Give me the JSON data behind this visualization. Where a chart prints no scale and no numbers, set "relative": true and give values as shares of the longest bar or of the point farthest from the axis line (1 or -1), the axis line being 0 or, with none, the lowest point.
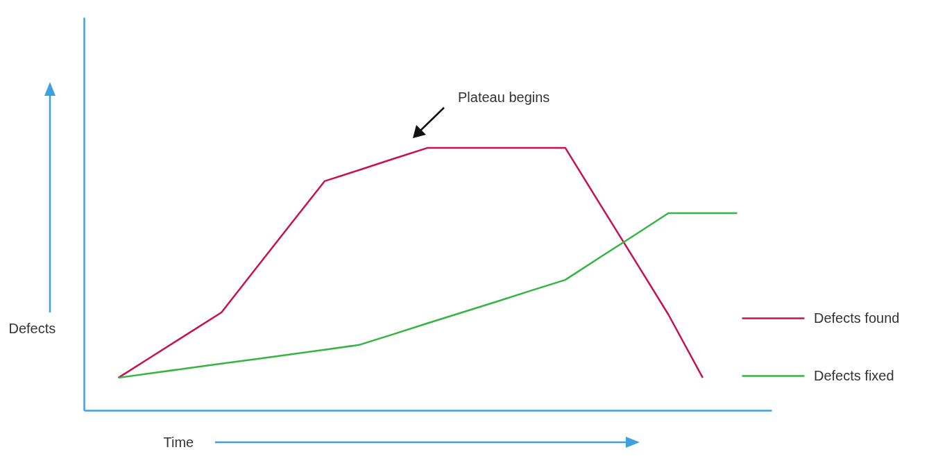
{
  "chart_data": {
    "type": "line",
    "relative": true,
    "xlabel": "Time",
    "ylabel": "Defects",
    "legend": "right",
    "categories": [
      null,
      null,
      null,
      null,
      null,
      null,
      null,
      null,
      null,
      null,
      null,
      null,
      null,
      null,
      null,
      null,
      null,
      null,
      null
    ],
    "annotations": [
      "Plateau begins"
    ],
    "series": [
      {
        "name": "Defects found",
        "color": "#c8104f",
        "values": [
          0.124,
          0.207,
          0.29,
          0.373,
          0.54,
          0.707,
          0.873,
          0.915,
          0.958,
          1,
          1,
          1,
          1,
          1,
          0.788,
          0.577,
          0.365,
          0.124,
          null
        ]
      },
      {
        "name": "Defects fixed",
        "color": "#33b540",
        "values": [
          0.124,
          0.142,
          0.16,
          0.178,
          0.195,
          0.213,
          0.231,
          0.249,
          0.29,
          0.332,
          0.373,
          0.414,
          0.456,
          0.497,
          0.582,
          0.666,
          0.751,
          0.751,
          0.751
        ]
      }
    ]
  }
}
